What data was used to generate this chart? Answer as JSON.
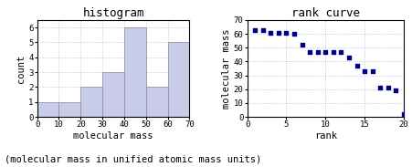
{
  "hist_bin_edges": [
    0,
    10,
    20,
    30,
    40,
    50,
    60,
    70
  ],
  "hist_counts": [
    1,
    1,
    2,
    3,
    6,
    2,
    5
  ],
  "hist_title": "histogram",
  "hist_xlabel": "molecular mass",
  "hist_ylabel": "count",
  "hist_xlim": [
    0,
    70
  ],
  "hist_yticks": [
    0,
    1,
    2,
    3,
    4,
    5,
    6
  ],
  "hist_xticks": [
    0,
    10,
    20,
    30,
    40,
    50,
    60,
    70
  ],
  "rank_x": [
    1,
    2,
    3,
    4,
    5,
    6,
    7,
    8,
    9,
    10,
    11,
    12,
    13,
    14,
    15,
    16,
    17,
    18,
    19,
    20
  ],
  "rank_y": [
    63,
    63,
    61,
    61,
    61,
    60,
    52,
    47,
    47,
    47,
    47,
    47,
    43,
    37,
    33,
    33,
    21,
    21,
    19,
    2
  ],
  "rank_title": "rank curve",
  "rank_xlabel": "rank",
  "rank_ylabel": "molecular mass",
  "rank_xlim": [
    0,
    20
  ],
  "rank_ylim": [
    0,
    70
  ],
  "rank_xticks": [
    0,
    5,
    10,
    15,
    20
  ],
  "rank_yticks": [
    0,
    10,
    20,
    30,
    40,
    50,
    60,
    70
  ],
  "bar_color": "#c8cce8",
  "bar_edge_color": "#888899",
  "dot_color": "#00008b",
  "caption": "(molecular mass in unified atomic mass units)",
  "grid_color": "#aaaacc",
  "caption_fontsize": 7.5,
  "tick_fontsize": 6.5,
  "axis_label_fontsize": 7.5,
  "title_fontsize": 9
}
